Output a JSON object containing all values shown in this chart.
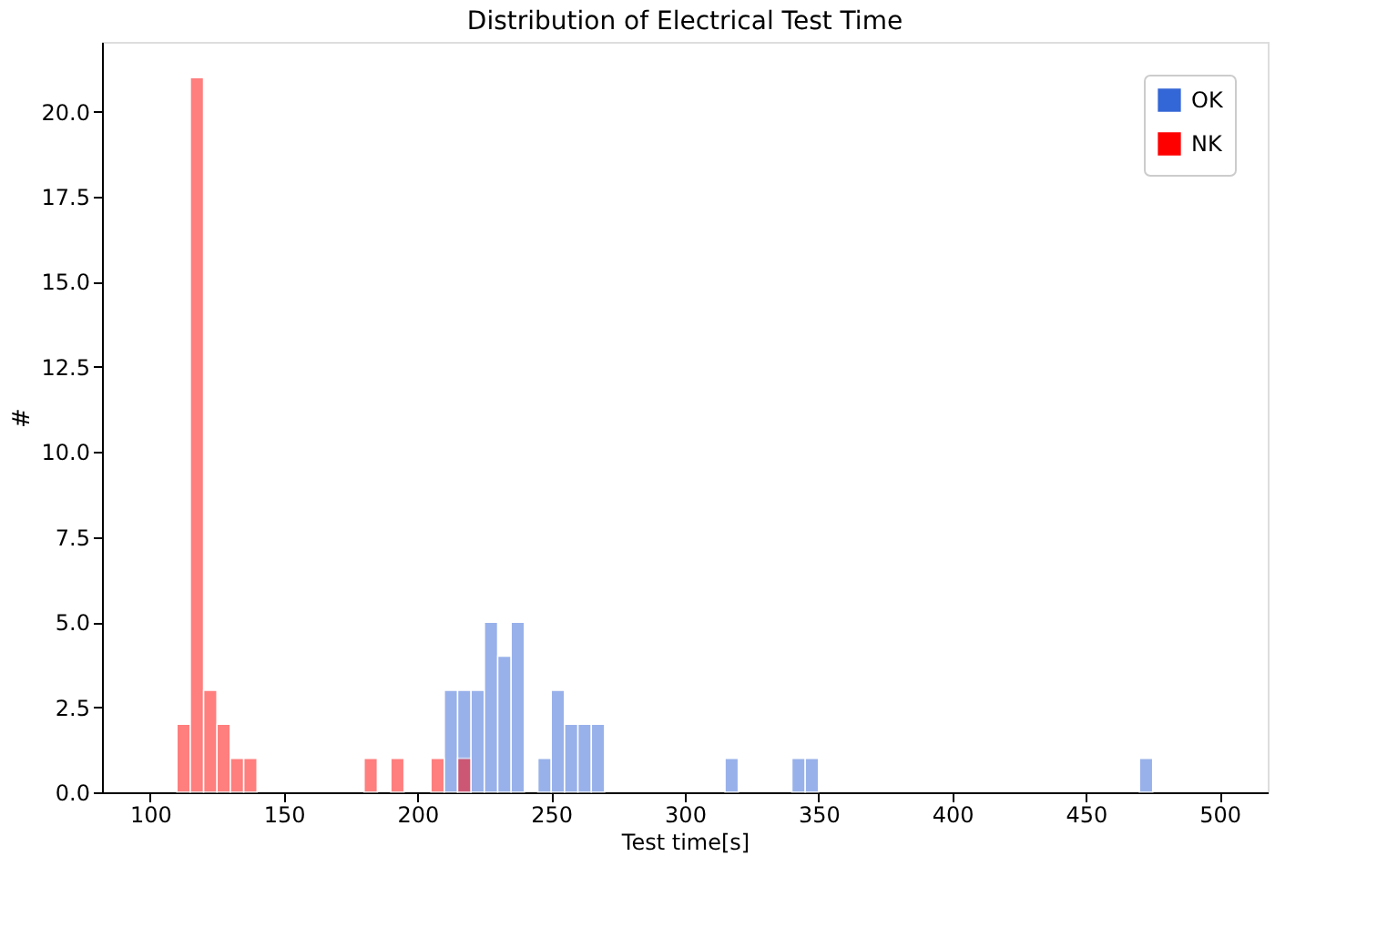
{
  "chart_data": {
    "type": "histogram",
    "title": "Distribution of Electrical Test Time",
    "xlabel": "Test time[s]",
    "ylabel": "#",
    "bins": [
      110,
      115,
      120,
      125,
      130,
      135,
      140,
      145,
      150,
      155,
      160,
      165,
      170,
      175,
      180,
      185,
      190,
      195,
      200,
      205,
      210,
      215,
      220,
      225,
      230,
      235,
      240,
      245,
      250,
      255,
      260,
      265,
      270,
      275,
      280,
      285,
      290,
      295,
      300,
      305,
      310,
      315,
      320,
      325,
      330,
      335,
      340,
      345,
      350,
      355,
      360,
      365,
      370,
      375,
      380,
      385,
      390,
      395,
      400,
      405,
      410,
      415,
      420,
      425,
      430,
      435,
      440,
      445,
      450,
      455,
      460,
      465,
      470,
      475
    ],
    "series": [
      {
        "name": "OK",
        "color": "#3366d6",
        "values": [
          0,
          0,
          0,
          0,
          0,
          0,
          0,
          0,
          0,
          0,
          0,
          0,
          0,
          0,
          0,
          0,
          0,
          0,
          0,
          0,
          3,
          3,
          3,
          5,
          4,
          5,
          0,
          1,
          3,
          2,
          2,
          2,
          0,
          0,
          0,
          0,
          0,
          0,
          0,
          0,
          0,
          1,
          0,
          0,
          0,
          0,
          1,
          1,
          0,
          0,
          0,
          0,
          0,
          0,
          0,
          0,
          0,
          0,
          0,
          0,
          0,
          0,
          0,
          0,
          0,
          0,
          0,
          0,
          0,
          0,
          0,
          0,
          1
        ]
      },
      {
        "name": "NK",
        "color": "#ff0000",
        "values": [
          2,
          21,
          3,
          2,
          1,
          1,
          0,
          0,
          0,
          0,
          0,
          0,
          0,
          0,
          1,
          0,
          1,
          0,
          0,
          1,
          0,
          1,
          0,
          0,
          0,
          0,
          0,
          0,
          0,
          0,
          0,
          0,
          0,
          0,
          0,
          0,
          0,
          0,
          0,
          0,
          0,
          0,
          0,
          0,
          0,
          0,
          0,
          0,
          0,
          0,
          0,
          0,
          0,
          0,
          0,
          0,
          0,
          0,
          0,
          0,
          0,
          0,
          0,
          0,
          0,
          0,
          0,
          0,
          0,
          0,
          0,
          0,
          0
        ]
      }
    ],
    "xlim": [
      82,
      518
    ],
    "xticks": [
      100,
      150,
      200,
      250,
      300,
      350,
      400,
      450,
      500
    ],
    "ylim": [
      0,
      22.05
    ],
    "yticks": [
      {
        "value": 0,
        "label": "0.0"
      },
      {
        "value": 2.5,
        "label": "2.5"
      },
      {
        "value": 5,
        "label": "5.0"
      },
      {
        "value": 7.5,
        "label": "7.5"
      },
      {
        "value": 10,
        "label": "10.0"
      },
      {
        "value": 12.5,
        "label": "12.5"
      },
      {
        "value": 15,
        "label": "15.0"
      },
      {
        "value": 17.5,
        "label": "17.5"
      },
      {
        "value": 20,
        "label": "20.0"
      }
    ],
    "legend": "top right",
    "grid": false
  }
}
